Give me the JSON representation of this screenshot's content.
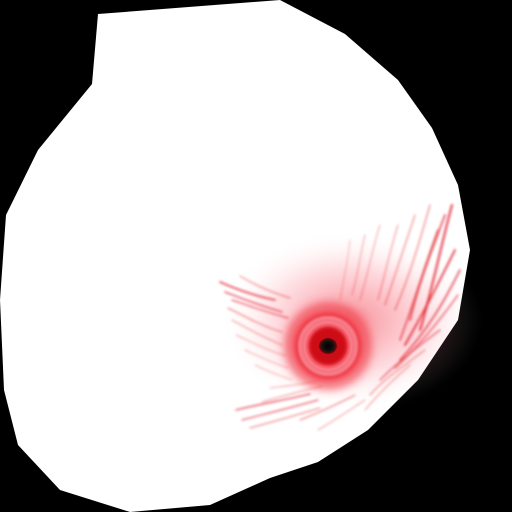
{
  "image": {
    "subject": "eyeball texture",
    "background_color": "#000000",
    "sclera_color": "#ffffff",
    "vein_color": "#e0101a",
    "iris_color": "#e8202c",
    "iris_highlight_color": "#f87f8a",
    "pupil_color": "#111111"
  }
}
